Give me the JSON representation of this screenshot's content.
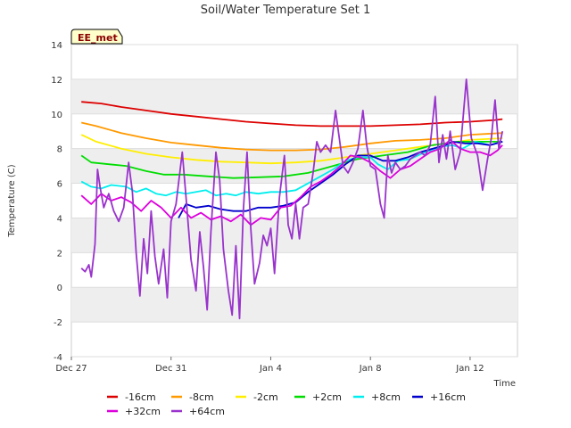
{
  "chart_data": {
    "type": "line",
    "title": "Soil/Water Temperature Set 1",
    "xlabel": "Time",
    "ylabel": "Temperature (C)",
    "badge": "EE_met",
    "x_ticks": [
      {
        "label": "Dec 27",
        "day": 0
      },
      {
        "label": "Dec 31",
        "day": 4
      },
      {
        "label": "Jan 4",
        "day": 8
      },
      {
        "label": "Jan 8",
        "day": 12
      },
      {
        "label": "Jan 12",
        "day": 16
      }
    ],
    "xlim": [
      0,
      17.9
    ],
    "ylim": [
      -4,
      14
    ],
    "y_ticks": [
      -4,
      -2,
      0,
      2,
      4,
      6,
      8,
      10,
      12,
      14
    ],
    "grid": true,
    "legend_position": "bottom",
    "series": [
      {
        "name": "-16cm",
        "color": "#dd0000",
        "points": [
          [
            0.4,
            10.7
          ],
          [
            1.2,
            10.6
          ],
          [
            2,
            10.4
          ],
          [
            3,
            10.2
          ],
          [
            4,
            10.0
          ],
          [
            5,
            9.85
          ],
          [
            6,
            9.7
          ],
          [
            7,
            9.55
          ],
          [
            8,
            9.45
          ],
          [
            9,
            9.35
          ],
          [
            10,
            9.3
          ],
          [
            11,
            9.3
          ],
          [
            12,
            9.3
          ],
          [
            13,
            9.35
          ],
          [
            14,
            9.4
          ],
          [
            15,
            9.5
          ],
          [
            16,
            9.55
          ],
          [
            17,
            9.65
          ],
          [
            17.3,
            9.7
          ]
        ]
      },
      {
        "name": "-8cm",
        "color": "#ff9900",
        "points": [
          [
            0.4,
            9.5
          ],
          [
            1,
            9.3
          ],
          [
            2,
            8.9
          ],
          [
            3,
            8.6
          ],
          [
            4,
            8.35
          ],
          [
            5,
            8.2
          ],
          [
            6,
            8.05
          ],
          [
            7,
            7.95
          ],
          [
            8,
            7.9
          ],
          [
            9,
            7.9
          ],
          [
            10,
            7.95
          ],
          [
            11,
            8.1
          ],
          [
            12,
            8.3
          ],
          [
            13,
            8.45
          ],
          [
            14,
            8.5
          ],
          [
            15,
            8.6
          ],
          [
            16,
            8.8
          ],
          [
            17.3,
            8.9
          ]
        ]
      },
      {
        "name": "-2cm",
        "color": "#ffee00",
        "points": [
          [
            0.4,
            8.8
          ],
          [
            1,
            8.4
          ],
          [
            2,
            8.0
          ],
          [
            3,
            7.7
          ],
          [
            4,
            7.5
          ],
          [
            5,
            7.35
          ],
          [
            6,
            7.25
          ],
          [
            7,
            7.2
          ],
          [
            8,
            7.15
          ],
          [
            9,
            7.2
          ],
          [
            10,
            7.3
          ],
          [
            11,
            7.5
          ],
          [
            12,
            7.7
          ],
          [
            13,
            7.9
          ],
          [
            14,
            8.1
          ],
          [
            15,
            8.3
          ],
          [
            16,
            8.5
          ],
          [
            17.3,
            8.6
          ]
        ]
      },
      {
        "name": "+2cm",
        "color": "#00dd00",
        "points": [
          [
            0.4,
            7.6
          ],
          [
            0.8,
            7.2
          ],
          [
            1.5,
            7.1
          ],
          [
            2.2,
            7.0
          ],
          [
            3,
            6.7
          ],
          [
            3.7,
            6.5
          ],
          [
            4.5,
            6.5
          ],
          [
            5.5,
            6.4
          ],
          [
            6.5,
            6.3
          ],
          [
            7.5,
            6.35
          ],
          [
            8.5,
            6.4
          ],
          [
            9.5,
            6.6
          ],
          [
            10.5,
            7.0
          ],
          [
            11.5,
            7.4
          ],
          [
            12.5,
            7.6
          ],
          [
            13.5,
            7.8
          ],
          [
            14.5,
            8.2
          ],
          [
            15.5,
            8.4
          ],
          [
            16.5,
            8.4
          ],
          [
            17.3,
            8.4
          ]
        ]
      },
      {
        "name": "+8cm",
        "color": "#00eeee",
        "points": [
          [
            0.4,
            6.1
          ],
          [
            0.8,
            5.8
          ],
          [
            1.2,
            5.7
          ],
          [
            1.6,
            5.9
          ],
          [
            2.2,
            5.8
          ],
          [
            2.6,
            5.5
          ],
          [
            3,
            5.7
          ],
          [
            3.4,
            5.4
          ],
          [
            3.8,
            5.3
          ],
          [
            4.2,
            5.5
          ],
          [
            4.6,
            5.4
          ],
          [
            5,
            5.5
          ],
          [
            5.4,
            5.6
          ],
          [
            5.8,
            5.3
          ],
          [
            6.2,
            5.4
          ],
          [
            6.6,
            5.3
          ],
          [
            7,
            5.5
          ],
          [
            7.5,
            5.4
          ],
          [
            8,
            5.5
          ],
          [
            8.5,
            5.5
          ],
          [
            9,
            5.6
          ],
          [
            9.5,
            6.0
          ],
          [
            10,
            6.4
          ],
          [
            10.5,
            6.8
          ],
          [
            11,
            7.3
          ],
          [
            11.5,
            7.5
          ],
          [
            12,
            7.5
          ],
          [
            12.3,
            7.1
          ],
          [
            12.7,
            6.8
          ],
          [
            13.1,
            7.3
          ],
          [
            13.6,
            7.4
          ],
          [
            14.2,
            7.8
          ],
          [
            14.8,
            8.1
          ],
          [
            15.3,
            8.2
          ],
          [
            15.7,
            8.0
          ],
          [
            16.2,
            8.4
          ],
          [
            16.8,
            8.2
          ],
          [
            17.3,
            8.4
          ]
        ]
      },
      {
        "name": "+16cm",
        "color": "#0000cc",
        "points": [
          [
            4.3,
            4.0
          ],
          [
            4.6,
            4.8
          ],
          [
            5,
            4.6
          ],
          [
            5.5,
            4.7
          ],
          [
            6,
            4.5
          ],
          [
            6.5,
            4.4
          ],
          [
            7,
            4.4
          ],
          [
            7.5,
            4.6
          ],
          [
            8,
            4.6
          ],
          [
            8.5,
            4.7
          ],
          [
            9,
            4.9
          ],
          [
            9.5,
            5.5
          ],
          [
            10,
            6.0
          ],
          [
            10.5,
            6.5
          ],
          [
            11,
            7.1
          ],
          [
            11.5,
            7.6
          ],
          [
            12,
            7.6
          ],
          [
            12.5,
            7.3
          ],
          [
            13,
            7.3
          ],
          [
            13.5,
            7.5
          ],
          [
            14,
            7.8
          ],
          [
            14.5,
            8.0
          ],
          [
            15,
            8.2
          ],
          [
            15.3,
            8.4
          ],
          [
            15.8,
            8.3
          ],
          [
            16.3,
            8.3
          ],
          [
            16.8,
            8.2
          ],
          [
            17.3,
            8.4
          ]
        ]
      },
      {
        "name": "+32cm",
        "color": "#dd00dd",
        "points": [
          [
            0.4,
            5.3
          ],
          [
            0.8,
            4.8
          ],
          [
            1.2,
            5.4
          ],
          [
            1.6,
            5.0
          ],
          [
            2,
            5.2
          ],
          [
            2.4,
            4.9
          ],
          [
            2.8,
            4.4
          ],
          [
            3.2,
            5.0
          ],
          [
            3.6,
            4.6
          ],
          [
            4,
            4.0
          ],
          [
            4.4,
            4.6
          ],
          [
            4.8,
            4.0
          ],
          [
            5.2,
            4.3
          ],
          [
            5.6,
            3.9
          ],
          [
            6,
            4.1
          ],
          [
            6.4,
            3.8
          ],
          [
            6.8,
            4.2
          ],
          [
            7.2,
            3.6
          ],
          [
            7.6,
            4.0
          ],
          [
            8,
            3.9
          ],
          [
            8.4,
            4.6
          ],
          [
            8.8,
            4.7
          ],
          [
            9.2,
            5.2
          ],
          [
            9.6,
            5.8
          ],
          [
            10,
            6.1
          ],
          [
            10.4,
            6.5
          ],
          [
            10.8,
            7.0
          ],
          [
            11.2,
            7.6
          ],
          [
            11.6,
            7.5
          ],
          [
            12,
            7.2
          ],
          [
            12.4,
            6.7
          ],
          [
            12.8,
            6.3
          ],
          [
            13.2,
            6.8
          ],
          [
            13.6,
            7.0
          ],
          [
            14,
            7.4
          ],
          [
            14.4,
            7.8
          ],
          [
            14.8,
            8.0
          ],
          [
            15.2,
            8.5
          ],
          [
            15.6,
            8.0
          ],
          [
            16,
            7.8
          ],
          [
            16.4,
            7.8
          ],
          [
            16.8,
            7.6
          ],
          [
            17.1,
            7.9
          ],
          [
            17.3,
            8.2
          ]
        ]
      },
      {
        "name": "+64cm",
        "color": "#9933cc",
        "points": [
          [
            0.4,
            1.1
          ],
          [
            0.55,
            0.9
          ],
          [
            0.7,
            1.3
          ],
          [
            0.8,
            0.6
          ],
          [
            0.95,
            2.5
          ],
          [
            1.05,
            6.8
          ],
          [
            1.15,
            5.8
          ],
          [
            1.3,
            4.6
          ],
          [
            1.5,
            5.4
          ],
          [
            1.7,
            4.4
          ],
          [
            1.9,
            3.8
          ],
          [
            2.1,
            4.6
          ],
          [
            2.3,
            7.2
          ],
          [
            2.45,
            5.5
          ],
          [
            2.6,
            2.0
          ],
          [
            2.75,
            -0.5
          ],
          [
            2.9,
            2.8
          ],
          [
            3.05,
            0.8
          ],
          [
            3.2,
            4.4
          ],
          [
            3.35,
            1.8
          ],
          [
            3.5,
            0.2
          ],
          [
            3.7,
            2.2
          ],
          [
            3.85,
            -0.6
          ],
          [
            4.0,
            3.8
          ],
          [
            4.2,
            4.8
          ],
          [
            4.45,
            7.8
          ],
          [
            4.6,
            5.2
          ],
          [
            4.8,
            1.6
          ],
          [
            5.0,
            -0.2
          ],
          [
            5.15,
            3.2
          ],
          [
            5.3,
            1.2
          ],
          [
            5.45,
            -1.3
          ],
          [
            5.6,
            3.2
          ],
          [
            5.8,
            7.8
          ],
          [
            5.95,
            6.2
          ],
          [
            6.1,
            2.2
          ],
          [
            6.3,
            -0.2
          ],
          [
            6.45,
            -1.6
          ],
          [
            6.6,
            2.4
          ],
          [
            6.75,
            -1.8
          ],
          [
            6.9,
            4.4
          ],
          [
            7.05,
            7.8
          ],
          [
            7.2,
            3.4
          ],
          [
            7.35,
            0.2
          ],
          [
            7.55,
            1.4
          ],
          [
            7.7,
            3.0
          ],
          [
            7.85,
            2.4
          ],
          [
            8.0,
            3.4
          ],
          [
            8.15,
            0.8
          ],
          [
            8.35,
            5.2
          ],
          [
            8.55,
            7.6
          ],
          [
            8.7,
            3.6
          ],
          [
            8.85,
            2.8
          ],
          [
            9.0,
            4.8
          ],
          [
            9.15,
            2.8
          ],
          [
            9.3,
            4.6
          ],
          [
            9.5,
            4.8
          ],
          [
            9.7,
            6.6
          ],
          [
            9.85,
            8.4
          ],
          [
            10.0,
            7.8
          ],
          [
            10.2,
            8.2
          ],
          [
            10.4,
            7.8
          ],
          [
            10.6,
            10.2
          ],
          [
            10.75,
            8.6
          ],
          [
            10.9,
            7.0
          ],
          [
            11.1,
            6.6
          ],
          [
            11.3,
            7.2
          ],
          [
            11.5,
            8.0
          ],
          [
            11.7,
            10.2
          ],
          [
            11.85,
            8.2
          ],
          [
            12.0,
            7.0
          ],
          [
            12.2,
            6.8
          ],
          [
            12.4,
            4.8
          ],
          [
            12.55,
            4.0
          ],
          [
            12.7,
            7.6
          ],
          [
            12.85,
            6.6
          ],
          [
            13.0,
            7.2
          ],
          [
            13.2,
            6.8
          ],
          [
            13.4,
            7.0
          ],
          [
            13.6,
            7.4
          ],
          [
            13.8,
            7.6
          ],
          [
            14.0,
            7.8
          ],
          [
            14.2,
            7.6
          ],
          [
            14.4,
            8.2
          ],
          [
            14.6,
            11.0
          ],
          [
            14.75,
            7.2
          ],
          [
            14.9,
            8.8
          ],
          [
            15.05,
            7.4
          ],
          [
            15.2,
            9.0
          ],
          [
            15.4,
            6.8
          ],
          [
            15.6,
            7.8
          ],
          [
            15.85,
            12.0
          ],
          [
            16.05,
            8.6
          ],
          [
            16.3,
            7.6
          ],
          [
            16.5,
            5.6
          ],
          [
            16.7,
            7.4
          ],
          [
            16.85,
            8.6
          ],
          [
            17.0,
            10.8
          ],
          [
            17.15,
            8.0
          ],
          [
            17.3,
            9.0
          ]
        ]
      }
    ]
  }
}
